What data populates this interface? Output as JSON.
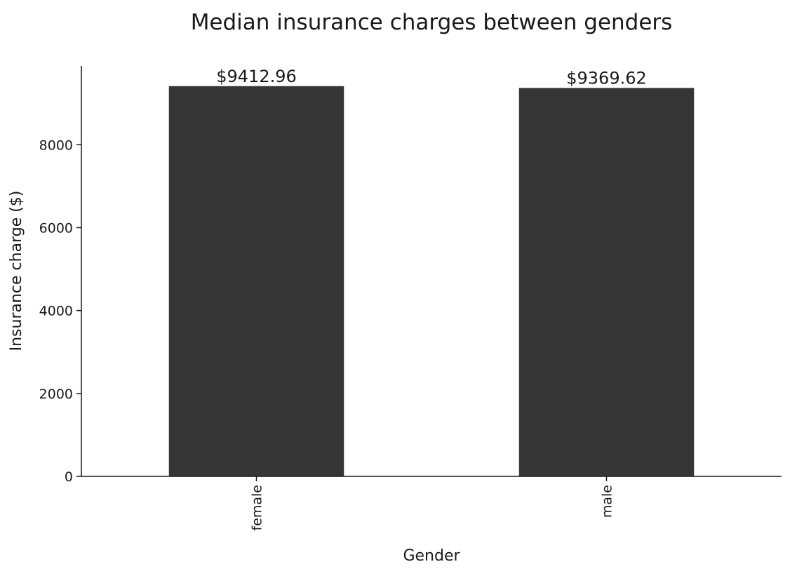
{
  "chart_data": {
    "type": "bar",
    "title": "Median insurance charges between genders",
    "xlabel": "Gender",
    "ylabel": "Insurance charge ($)",
    "categories": [
      "female",
      "male"
    ],
    "values": [
      9412.96,
      9369.62
    ],
    "value_labels": [
      "$9412.96",
      "$9369.62"
    ],
    "yticks": [
      0,
      2000,
      4000,
      6000,
      8000
    ],
    "ytick_labels": [
      "0",
      "2000",
      "4000",
      "6000",
      "8000"
    ],
    "ylim": [
      0,
      9900
    ],
    "grid": false,
    "legend": "none",
    "bar_color": "#363636",
    "axis_color": "#1a1a1a"
  }
}
